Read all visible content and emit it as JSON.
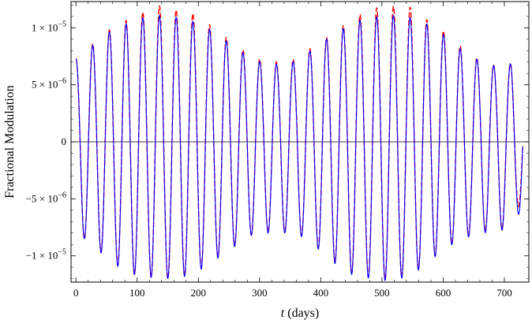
{
  "chart_data": {
    "type": "line",
    "xlabel_var": "t",
    "xlabel_rest": " (days)",
    "ylabel": "Fractional Modulation",
    "xlim": [
      -8,
      740
    ],
    "ylim": [
      -1.23e-05,
      1.23e-05
    ],
    "x_ticks": [
      0,
      100,
      200,
      300,
      400,
      500,
      600,
      700
    ],
    "y_ticks": [
      {
        "value": 1e-05,
        "mantissa": "1",
        "exponent": "−5"
      },
      {
        "value": 5e-06,
        "mantissa": "5",
        "exponent": "−6"
      },
      {
        "value": 0,
        "mantissa": "0",
        "exponent": ""
      },
      {
        "value": -5e-06,
        "mantissa": "−5",
        "exponent": "−6"
      },
      {
        "value": -1e-05,
        "mantissa": "−1",
        "exponent": "−5"
      }
    ],
    "zero_line": true,
    "period_days": 27.3,
    "series": [
      {
        "color": "#ff0000",
        "dashed": true,
        "x_extent": [
          0,
          730
        ],
        "max_envelope": [
          [
            0,
            7.3e-06
          ],
          [
            28,
            8.6e-06
          ],
          [
            56,
            9.9e-06
          ],
          [
            84,
            1.07e-05
          ],
          [
            110,
            1.14e-05
          ],
          [
            140,
            1.2e-05
          ],
          [
            168,
            1.15e-05
          ],
          [
            196,
            1.12e-05
          ],
          [
            225,
            1e-05
          ],
          [
            252,
            8.9e-06
          ],
          [
            280,
            7.8e-06
          ],
          [
            306,
            7.1e-06
          ],
          [
            334,
            7e-06
          ],
          [
            360,
            7.3e-06
          ],
          [
            388,
            8.4e-06
          ],
          [
            414,
            9.3e-06
          ],
          [
            442,
            1.04e-05
          ],
          [
            468,
            1.13e-05
          ],
          [
            494,
            1.18e-05
          ],
          [
            520,
            1.19e-05
          ],
          [
            548,
            1.18e-05
          ],
          [
            576,
            1.06e-05
          ],
          [
            604,
            9.6e-06
          ],
          [
            632,
            8.2e-06
          ],
          [
            660,
            7.2e-06
          ],
          [
            688,
            6.6e-06
          ],
          [
            714,
            6.9e-06
          ],
          [
            730,
            6.9e-06
          ]
        ],
        "min_envelope": [
          [
            0,
            -7.5e-06
          ],
          [
            15,
            -8.6e-06
          ],
          [
            42,
            -9.7e-06
          ],
          [
            70,
            -1.09e-05
          ],
          [
            98,
            -1.17e-05
          ],
          [
            124,
            -1.19e-05
          ],
          [
            152,
            -1.2e-05
          ],
          [
            180,
            -1.17e-05
          ],
          [
            208,
            -1.1e-05
          ],
          [
            235,
            -1e-05
          ],
          [
            262,
            -9e-06
          ],
          [
            290,
            -8e-06
          ],
          [
            318,
            -7.9e-06
          ],
          [
            346,
            -7.9e-06
          ],
          [
            374,
            -8.3e-06
          ],
          [
            402,
            -9.5e-06
          ],
          [
            430,
            -1.09e-05
          ],
          [
            456,
            -1.17e-05
          ],
          [
            484,
            -1.19e-05
          ],
          [
            510,
            -1.21e-05
          ],
          [
            538,
            -1.18e-05
          ],
          [
            565,
            -1.1e-05
          ],
          [
            593,
            -9.7e-06
          ],
          [
            621,
            -8.7e-06
          ],
          [
            648,
            -8.1e-06
          ],
          [
            676,
            -7.8e-06
          ],
          [
            704,
            -7.6e-06
          ],
          [
            730,
            -5e-06
          ]
        ]
      },
      {
        "color": "#0000ff",
        "dashed": false,
        "x_extent": [
          0,
          730
        ],
        "max_envelope": [
          [
            0,
            7.3e-06
          ],
          [
            28,
            8.5e-06
          ],
          [
            56,
            9.7e-06
          ],
          [
            84,
            1.04e-05
          ],
          [
            110,
            1.09e-05
          ],
          [
            140,
            1.11e-05
          ],
          [
            168,
            1.09e-05
          ],
          [
            196,
            1.05e-05
          ],
          [
            225,
            9.7e-06
          ],
          [
            252,
            8.6e-06
          ],
          [
            280,
            7.6e-06
          ],
          [
            306,
            6.9e-06
          ],
          [
            334,
            6.8e-06
          ],
          [
            360,
            7.1e-06
          ],
          [
            388,
            8.2e-06
          ],
          [
            414,
            9.2e-06
          ],
          [
            442,
            1.01e-05
          ],
          [
            468,
            1.08e-05
          ],
          [
            494,
            1.1e-05
          ],
          [
            520,
            1.11e-05
          ],
          [
            548,
            1.09e-05
          ],
          [
            576,
            1.03e-05
          ],
          [
            604,
            9.3e-06
          ],
          [
            632,
            8e-06
          ],
          [
            660,
            7.1e-06
          ],
          [
            688,
            6.6e-06
          ],
          [
            714,
            6.9e-06
          ],
          [
            730,
            6.9e-06
          ]
        ],
        "min_envelope": [
          [
            0,
            -7.4e-06
          ],
          [
            15,
            -8.6e-06
          ],
          [
            42,
            -9.8e-06
          ],
          [
            70,
            -1.1e-05
          ],
          [
            98,
            -1.17e-05
          ],
          [
            124,
            -1.19e-05
          ],
          [
            152,
            -1.2e-05
          ],
          [
            180,
            -1.18e-05
          ],
          [
            208,
            -1.11e-05
          ],
          [
            235,
            -1.01e-05
          ],
          [
            262,
            -9.1e-06
          ],
          [
            290,
            -8.1e-06
          ],
          [
            318,
            -8e-06
          ],
          [
            346,
            -8e-06
          ],
          [
            374,
            -8.4e-06
          ],
          [
            402,
            -9.7e-06
          ],
          [
            430,
            -1.1e-05
          ],
          [
            456,
            -1.18e-05
          ],
          [
            484,
            -1.2e-05
          ],
          [
            510,
            -1.22e-05
          ],
          [
            538,
            -1.19e-05
          ],
          [
            565,
            -1.11e-05
          ],
          [
            593,
            -9.8e-06
          ],
          [
            621,
            -8.8e-06
          ],
          [
            648,
            -8.2e-06
          ],
          [
            676,
            -7.9e-06
          ],
          [
            704,
            -7.7e-06
          ],
          [
            730,
            -5.9e-06
          ]
        ]
      }
    ]
  }
}
